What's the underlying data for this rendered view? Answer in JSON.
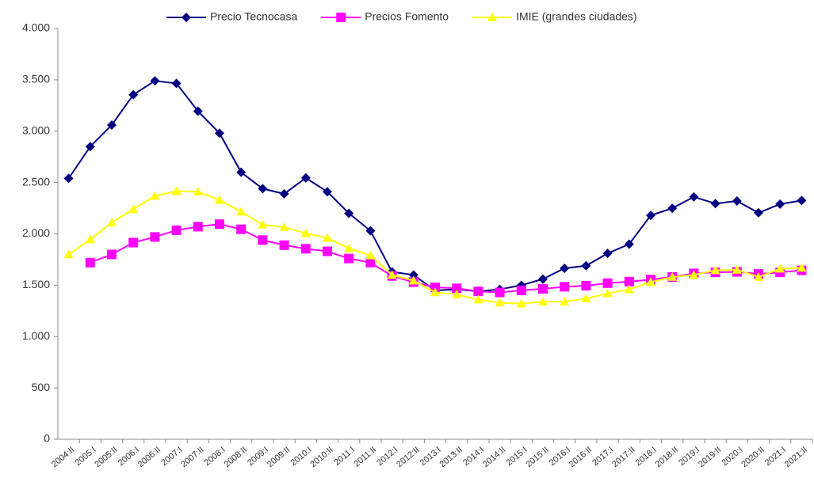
{
  "chart_data": {
    "type": "line",
    "categories": [
      "2004:II",
      "2005:I",
      "2005:II",
      "2006:I",
      "2006:II",
      "2007:I",
      "2007:II",
      "2008:I",
      "2008:II",
      "2009:I",
      "2009:II",
      "2010:I",
      "2010:II",
      "2011:I",
      "2011:II",
      "2012:I",
      "2012:II",
      "2013:I",
      "2013:II",
      "2014:I",
      "2014:II",
      "2015:I",
      "2015:II",
      "2016:I",
      "2016:II",
      "2017:I",
      "2017:II",
      "2018:I",
      "2018:II",
      "2019:I",
      "2019:II",
      "2020:I",
      "2020:II",
      "2021:I",
      "2021:II"
    ],
    "series": [
      {
        "name": "Precio Tecnocasa",
        "color": "#000080",
        "marker": "diamond",
        "values": [
          2540,
          2850,
          3060,
          3355,
          3490,
          3465,
          3195,
          2980,
          2600,
          2440,
          2390,
          2545,
          2410,
          2200,
          2030,
          1630,
          1600,
          1450,
          1460,
          1440,
          1460,
          1500,
          1560,
          1665,
          1690,
          1810,
          1900,
          2180,
          2250,
          2360,
          2295,
          2320,
          2205,
          2290,
          2325
        ]
      },
      {
        "name": "Precios Fomento",
        "color": "#ff00ff",
        "marker": "square",
        "values": [
          null,
          1720,
          1800,
          1915,
          1970,
          2035,
          2070,
          2095,
          2045,
          1940,
          1890,
          1855,
          1830,
          1760,
          1720,
          1590,
          1530,
          1480,
          1470,
          1440,
          1430,
          1450,
          1465,
          1485,
          1495,
          1520,
          1535,
          1555,
          1580,
          1615,
          1625,
          1630,
          1610,
          1625,
          1645
        ]
      },
      {
        "name": "IMIE (grandes ciudades)",
        "color": "#ffff00",
        "marker": "triangle",
        "values": [
          1800,
          1945,
          2110,
          2240,
          2370,
          2415,
          2410,
          2330,
          2215,
          2090,
          2065,
          2005,
          1960,
          1860,
          1790,
          1600,
          1545,
          1430,
          1410,
          1360,
          1330,
          1320,
          1340,
          1340,
          1370,
          1420,
          1460,
          1530,
          1580,
          1600,
          1645,
          1650,
          1580,
          1660,
          1670
        ]
      }
    ],
    "ylim": [
      0,
      4000
    ],
    "yticks": [
      0,
      500,
      {
        "value": 1000,
        "label": "1.000"
      },
      {
        "value": 1500,
        "label": "1.500"
      },
      {
        "value": 2000,
        "label": "2.000"
      },
      {
        "value": 2500,
        "label": "2.500"
      },
      {
        "value": 3000,
        "label": "3.000"
      },
      {
        "value": 3500,
        "label": "3.500"
      },
      {
        "value": 4000,
        "label": "4.000"
      }
    ],
    "grid": false,
    "legend": "top"
  }
}
